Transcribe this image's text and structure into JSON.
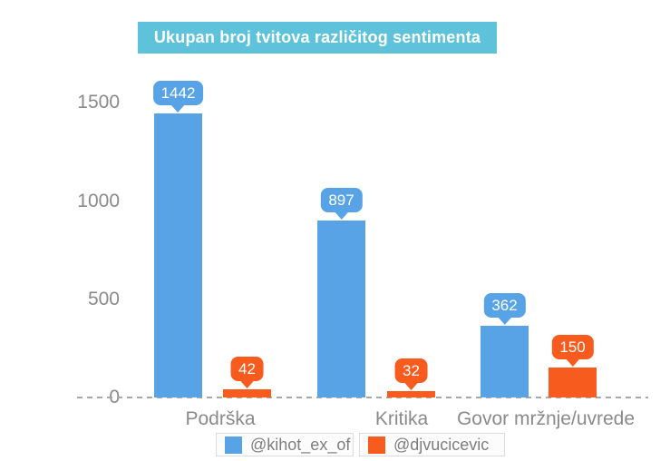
{
  "chart": {
    "title": "Ukupan broj tvitova različitog sentimenta",
    "y_ticks": [
      "1500",
      "1000",
      "500",
      "0"
    ],
    "x_labels": [
      "Podrška",
      "Kritika",
      "Govor mržnje/uvrede"
    ],
    "legend": {
      "items": [
        {
          "label": "@kihot_ex_of"
        },
        {
          "label": "@djvucicevic"
        }
      ]
    }
  },
  "chart_data": {
    "type": "bar",
    "title": "Ukupan broj tvitova različitog sentimenta",
    "categories": [
      "Podrška",
      "Kritika",
      "Govor mržnje/uvrede"
    ],
    "series": [
      {
        "name": "@kihot_ex_of",
        "color": "#58A3E6",
        "values": [
          1442,
          897,
          362
        ]
      },
      {
        "name": "@djvucicevic",
        "color": "#F75B1D",
        "values": [
          42,
          32,
          150
        ]
      }
    ],
    "xlabel": "",
    "ylabel": "",
    "ylim": [
      0,
      1500
    ],
    "yticks": [
      0,
      500,
      1000,
      1500
    ],
    "grid": false,
    "legend_position": "bottom",
    "data_labels": true,
    "colors": {
      "title_background": "#5EC3DA",
      "title_text": "#FFFFFF",
      "axis_text": "#8A8A8A",
      "baseline_dash": "#A8A8A8",
      "legend_border": "#DCDCDC"
    }
  }
}
